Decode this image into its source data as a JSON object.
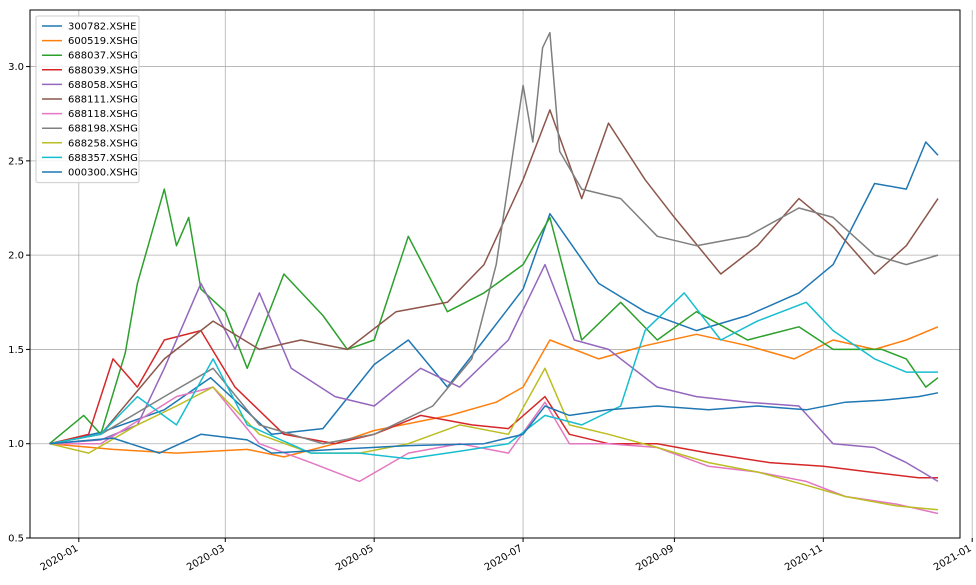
{
  "chart_data": {
    "type": "line",
    "title": "",
    "xlabel": "",
    "ylabel": "",
    "grid": true,
    "legend_position": "upper-left",
    "x_date_range": [
      "2019-12-20",
      "2020-12-18"
    ],
    "xlim": [
      "2019-12-12",
      "2020-12-27"
    ],
    "ylim": [
      0.5,
      3.3
    ],
    "x_ticks": [
      "2020-01-01",
      "2020-03-01",
      "2020-05-01",
      "2020-07-01",
      "2020-09-01",
      "2020-11-01",
      "2021-01-01"
    ],
    "x_tick_labels": [
      "2020-01",
      "2020-03",
      "2020-05",
      "2020-07",
      "2020-09",
      "2020-11",
      "2021-01"
    ],
    "y_ticks": [
      0.5,
      1.0,
      1.5,
      2.0,
      2.5,
      3.0
    ],
    "y_tick_labels": [
      "0.5",
      "1.0",
      "1.5",
      "2.0",
      "2.5",
      "3.0"
    ],
    "series": [
      {
        "name": "300782.XSHE",
        "color": "#1f77b4",
        "points": [
          [
            "2019-12-20",
            1.0
          ],
          [
            "2020-01-10",
            1.06
          ],
          [
            "2020-02-05",
            1.18
          ],
          [
            "2020-02-24",
            1.35
          ],
          [
            "2020-03-20",
            1.05
          ],
          [
            "2020-04-10",
            1.08
          ],
          [
            "2020-05-01",
            1.42
          ],
          [
            "2020-05-15",
            1.55
          ],
          [
            "2020-05-31",
            1.3
          ],
          [
            "2020-06-15",
            1.55
          ],
          [
            "2020-07-01",
            1.82
          ],
          [
            "2020-07-12",
            2.22
          ],
          [
            "2020-08-01",
            1.85
          ],
          [
            "2020-08-20",
            1.7
          ],
          [
            "2020-09-10",
            1.6
          ],
          [
            "2020-10-01",
            1.68
          ],
          [
            "2020-10-22",
            1.8
          ],
          [
            "2020-11-05",
            1.95
          ],
          [
            "2020-11-22",
            2.38
          ],
          [
            "2020-12-05",
            2.35
          ],
          [
            "2020-12-13",
            2.6
          ],
          [
            "2020-12-18",
            2.53
          ]
        ]
      },
      {
        "name": "600519.XSHG",
        "color": "#ff7f0e",
        "points": [
          [
            "2019-12-20",
            1.0
          ],
          [
            "2020-01-15",
            0.97
          ],
          [
            "2020-02-10",
            0.95
          ],
          [
            "2020-03-10",
            0.97
          ],
          [
            "2020-03-25",
            0.93
          ],
          [
            "2020-04-15",
            1.0
          ],
          [
            "2020-05-01",
            1.07
          ],
          [
            "2020-06-01",
            1.15
          ],
          [
            "2020-06-20",
            1.22
          ],
          [
            "2020-07-01",
            1.3
          ],
          [
            "2020-07-12",
            1.55
          ],
          [
            "2020-08-01",
            1.45
          ],
          [
            "2020-08-20",
            1.52
          ],
          [
            "2020-09-10",
            1.58
          ],
          [
            "2020-10-01",
            1.52
          ],
          [
            "2020-10-20",
            1.45
          ],
          [
            "2020-11-05",
            1.55
          ],
          [
            "2020-11-22",
            1.5
          ],
          [
            "2020-12-05",
            1.55
          ],
          [
            "2020-12-18",
            1.62
          ]
        ]
      },
      {
        "name": "688037.XSHG",
        "color": "#2ca02c",
        "points": [
          [
            "2019-12-20",
            1.0
          ],
          [
            "2020-01-03",
            1.15
          ],
          [
            "2020-01-10",
            1.05
          ],
          [
            "2020-01-20",
            1.48
          ],
          [
            "2020-01-25",
            1.85
          ],
          [
            "2020-02-05",
            2.35
          ],
          [
            "2020-02-10",
            2.05
          ],
          [
            "2020-02-15",
            2.2
          ],
          [
            "2020-02-20",
            1.82
          ],
          [
            "2020-03-01",
            1.7
          ],
          [
            "2020-03-10",
            1.4
          ],
          [
            "2020-03-25",
            1.9
          ],
          [
            "2020-04-10",
            1.68
          ],
          [
            "2020-04-20",
            1.5
          ],
          [
            "2020-05-01",
            1.55
          ],
          [
            "2020-05-15",
            2.1
          ],
          [
            "2020-05-31",
            1.7
          ],
          [
            "2020-06-15",
            1.8
          ],
          [
            "2020-07-01",
            1.95
          ],
          [
            "2020-07-12",
            2.2
          ],
          [
            "2020-07-25",
            1.55
          ],
          [
            "2020-08-10",
            1.75
          ],
          [
            "2020-08-25",
            1.55
          ],
          [
            "2020-09-10",
            1.7
          ],
          [
            "2020-10-01",
            1.55
          ],
          [
            "2020-10-22",
            1.62
          ],
          [
            "2020-11-05",
            1.5
          ],
          [
            "2020-11-25",
            1.5
          ],
          [
            "2020-12-05",
            1.45
          ],
          [
            "2020-12-13",
            1.3
          ],
          [
            "2020-12-18",
            1.35
          ]
        ]
      },
      {
        "name": "688039.XSHG",
        "color": "#d62728",
        "points": [
          [
            "2019-12-20",
            1.0
          ],
          [
            "2020-01-05",
            1.05
          ],
          [
            "2020-01-15",
            1.45
          ],
          [
            "2020-01-25",
            1.3
          ],
          [
            "2020-02-05",
            1.55
          ],
          [
            "2020-02-20",
            1.6
          ],
          [
            "2020-03-05",
            1.3
          ],
          [
            "2020-03-25",
            1.05
          ],
          [
            "2020-04-15",
            1.0
          ],
          [
            "2020-05-01",
            1.05
          ],
          [
            "2020-05-20",
            1.15
          ],
          [
            "2020-06-10",
            1.1
          ],
          [
            "2020-06-25",
            1.08
          ],
          [
            "2020-07-10",
            1.25
          ],
          [
            "2020-07-20",
            1.05
          ],
          [
            "2020-08-05",
            1.0
          ],
          [
            "2020-08-25",
            1.0
          ],
          [
            "2020-09-15",
            0.95
          ],
          [
            "2020-10-10",
            0.9
          ],
          [
            "2020-11-01",
            0.88
          ],
          [
            "2020-11-20",
            0.85
          ],
          [
            "2020-12-10",
            0.82
          ],
          [
            "2020-12-18",
            0.82
          ]
        ]
      },
      {
        "name": "688058.XSHG",
        "color": "#9467bd",
        "points": [
          [
            "2019-12-20",
            1.0
          ],
          [
            "2020-01-10",
            1.02
          ],
          [
            "2020-01-25",
            1.1
          ],
          [
            "2020-02-05",
            1.4
          ],
          [
            "2020-02-20",
            1.85
          ],
          [
            "2020-03-05",
            1.5
          ],
          [
            "2020-03-15",
            1.8
          ],
          [
            "2020-03-28",
            1.4
          ],
          [
            "2020-04-15",
            1.25
          ],
          [
            "2020-05-01",
            1.2
          ],
          [
            "2020-05-20",
            1.4
          ],
          [
            "2020-06-05",
            1.3
          ],
          [
            "2020-06-25",
            1.55
          ],
          [
            "2020-07-10",
            1.95
          ],
          [
            "2020-07-22",
            1.55
          ],
          [
            "2020-08-05",
            1.5
          ],
          [
            "2020-08-25",
            1.3
          ],
          [
            "2020-09-10",
            1.25
          ],
          [
            "2020-10-01",
            1.22
          ],
          [
            "2020-10-22",
            1.2
          ],
          [
            "2020-11-05",
            1.0
          ],
          [
            "2020-11-22",
            0.98
          ],
          [
            "2020-12-05",
            0.9
          ],
          [
            "2020-12-18",
            0.8
          ]
        ]
      },
      {
        "name": "688111.XSHG",
        "color": "#8c564b",
        "points": [
          [
            "2019-12-20",
            1.0
          ],
          [
            "2020-01-10",
            1.05
          ],
          [
            "2020-02-05",
            1.45
          ],
          [
            "2020-02-25",
            1.65
          ],
          [
            "2020-03-15",
            1.5
          ],
          [
            "2020-04-01",
            1.55
          ],
          [
            "2020-04-20",
            1.5
          ],
          [
            "2020-05-10",
            1.7
          ],
          [
            "2020-05-31",
            1.75
          ],
          [
            "2020-06-15",
            1.95
          ],
          [
            "2020-07-01",
            2.4
          ],
          [
            "2020-07-12",
            2.77
          ],
          [
            "2020-07-25",
            2.3
          ],
          [
            "2020-08-05",
            2.7
          ],
          [
            "2020-08-20",
            2.4
          ],
          [
            "2020-09-01",
            2.2
          ],
          [
            "2020-09-20",
            1.9
          ],
          [
            "2020-10-05",
            2.05
          ],
          [
            "2020-10-22",
            2.3
          ],
          [
            "2020-11-05",
            2.15
          ],
          [
            "2020-11-22",
            1.9
          ],
          [
            "2020-12-05",
            2.05
          ],
          [
            "2020-12-18",
            2.3
          ]
        ]
      },
      {
        "name": "688118.XSHG",
        "color": "#e377c2",
        "points": [
          [
            "2019-12-20",
            1.0
          ],
          [
            "2020-01-10",
            1.0
          ],
          [
            "2020-01-25",
            1.12
          ],
          [
            "2020-02-10",
            1.25
          ],
          [
            "2020-02-25",
            1.3
          ],
          [
            "2020-03-15",
            1.0
          ],
          [
            "2020-04-05",
            0.9
          ],
          [
            "2020-04-25",
            0.8
          ],
          [
            "2020-05-15",
            0.95
          ],
          [
            "2020-06-05",
            1.0
          ],
          [
            "2020-06-25",
            0.95
          ],
          [
            "2020-07-10",
            1.22
          ],
          [
            "2020-07-20",
            1.0
          ],
          [
            "2020-08-05",
            1.0
          ],
          [
            "2020-08-25",
            0.98
          ],
          [
            "2020-09-15",
            0.88
          ],
          [
            "2020-10-05",
            0.85
          ],
          [
            "2020-10-25",
            0.8
          ],
          [
            "2020-11-10",
            0.72
          ],
          [
            "2020-12-01",
            0.68
          ],
          [
            "2020-12-18",
            0.63
          ]
        ]
      },
      {
        "name": "688198.XSHG",
        "color": "#7f7f7f",
        "points": [
          [
            "2019-12-20",
            1.0
          ],
          [
            "2020-01-10",
            1.05
          ],
          [
            "2020-02-05",
            1.25
          ],
          [
            "2020-02-25",
            1.4
          ],
          [
            "2020-03-15",
            1.1
          ],
          [
            "2020-04-10",
            1.0
          ],
          [
            "2020-05-01",
            1.05
          ],
          [
            "2020-05-25",
            1.2
          ],
          [
            "2020-06-10",
            1.45
          ],
          [
            "2020-06-20",
            1.95
          ],
          [
            "2020-07-01",
            2.9
          ],
          [
            "2020-07-05",
            2.6
          ],
          [
            "2020-07-09",
            3.1
          ],
          [
            "2020-07-12",
            3.18
          ],
          [
            "2020-07-16",
            2.55
          ],
          [
            "2020-07-25",
            2.35
          ],
          [
            "2020-08-10",
            2.3
          ],
          [
            "2020-08-25",
            2.1
          ],
          [
            "2020-09-10",
            2.05
          ],
          [
            "2020-10-01",
            2.1
          ],
          [
            "2020-10-22",
            2.25
          ],
          [
            "2020-11-05",
            2.2
          ],
          [
            "2020-11-22",
            2.0
          ],
          [
            "2020-12-05",
            1.95
          ],
          [
            "2020-12-18",
            2.0
          ]
        ]
      },
      {
        "name": "688258.XSHG",
        "color": "#bcbd22",
        "points": [
          [
            "2019-12-20",
            1.0
          ],
          [
            "2020-01-05",
            0.95
          ],
          [
            "2020-01-25",
            1.1
          ],
          [
            "2020-02-10",
            1.2
          ],
          [
            "2020-02-25",
            1.3
          ],
          [
            "2020-03-15",
            1.05
          ],
          [
            "2020-04-05",
            0.95
          ],
          [
            "2020-04-25",
            0.95
          ],
          [
            "2020-05-15",
            1.0
          ],
          [
            "2020-06-05",
            1.1
          ],
          [
            "2020-06-25",
            1.05
          ],
          [
            "2020-07-10",
            1.4
          ],
          [
            "2020-07-20",
            1.1
          ],
          [
            "2020-08-05",
            1.05
          ],
          [
            "2020-08-25",
            0.98
          ],
          [
            "2020-09-15",
            0.9
          ],
          [
            "2020-10-05",
            0.85
          ],
          [
            "2020-10-25",
            0.78
          ],
          [
            "2020-11-10",
            0.72
          ],
          [
            "2020-12-01",
            0.67
          ],
          [
            "2020-12-18",
            0.65
          ]
        ]
      },
      {
        "name": "688357.XSHG",
        "color": "#17becf",
        "points": [
          [
            "2019-12-20",
            1.0
          ],
          [
            "2020-01-10",
            1.05
          ],
          [
            "2020-01-25",
            1.25
          ],
          [
            "2020-02-10",
            1.1
          ],
          [
            "2020-02-25",
            1.45
          ],
          [
            "2020-03-10",
            1.1
          ],
          [
            "2020-04-05",
            0.95
          ],
          [
            "2020-04-25",
            0.95
          ],
          [
            "2020-05-15",
            0.92
          ],
          [
            "2020-06-05",
            0.96
          ],
          [
            "2020-06-25",
            1.0
          ],
          [
            "2020-07-10",
            1.15
          ],
          [
            "2020-07-25",
            1.1
          ],
          [
            "2020-08-10",
            1.2
          ],
          [
            "2020-08-20",
            1.6
          ],
          [
            "2020-09-05",
            1.8
          ],
          [
            "2020-09-20",
            1.55
          ],
          [
            "2020-10-05",
            1.65
          ],
          [
            "2020-10-25",
            1.75
          ],
          [
            "2020-11-05",
            1.6
          ],
          [
            "2020-11-22",
            1.45
          ],
          [
            "2020-12-05",
            1.38
          ],
          [
            "2020-12-18",
            1.38
          ]
        ]
      },
      {
        "name": "000300.XSHG",
        "color": "#1f77b4",
        "points": [
          [
            "2019-12-20",
            1.0
          ],
          [
            "2020-01-15",
            1.03
          ],
          [
            "2020-02-03",
            0.95
          ],
          [
            "2020-02-20",
            1.05
          ],
          [
            "2020-03-10",
            1.02
          ],
          [
            "2020-03-20",
            0.95
          ],
          [
            "2020-04-15",
            0.97
          ],
          [
            "2020-05-15",
            0.99
          ],
          [
            "2020-06-15",
            1.0
          ],
          [
            "2020-07-01",
            1.05
          ],
          [
            "2020-07-10",
            1.2
          ],
          [
            "2020-07-20",
            1.15
          ],
          [
            "2020-08-05",
            1.18
          ],
          [
            "2020-08-25",
            1.2
          ],
          [
            "2020-09-15",
            1.18
          ],
          [
            "2020-10-05",
            1.2
          ],
          [
            "2020-10-25",
            1.18
          ],
          [
            "2020-11-10",
            1.22
          ],
          [
            "2020-11-25",
            1.23
          ],
          [
            "2020-12-10",
            1.25
          ],
          [
            "2020-12-18",
            1.27
          ]
        ]
      }
    ]
  }
}
